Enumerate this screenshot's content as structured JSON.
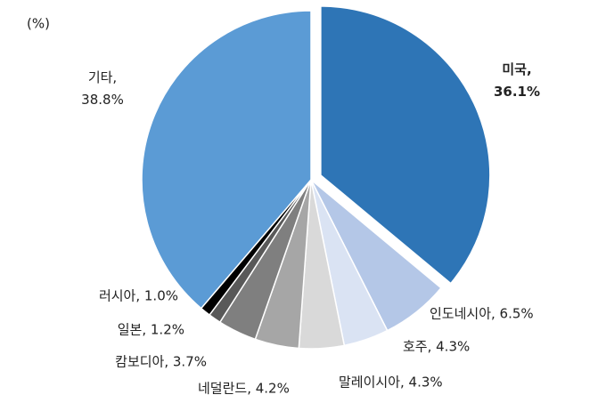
{
  "chart_data": {
    "type": "pie",
    "unit": "(%)",
    "values": [
      36.1,
      6.5,
      4.3,
      4.3,
      4.2,
      3.7,
      1.2,
      1.0,
      38.8
    ],
    "value_labels": [
      "미국,\n36.1%",
      "인도네시아, 6.5%",
      "호주, 4.3%",
      "말레이시아, 4.3%",
      "네덜란드, 4.2%",
      "캄보디아, 3.7%",
      "일본, 1.2%",
      "러시아, 1.0%",
      "기타,\n38.8%"
    ],
    "colors": [
      "#2e75b6",
      "#b4c7e7",
      "#dae3f3",
      "#d9d9d9",
      "#a6a6a6",
      "#7f7f7f",
      "#595959",
      "#000000",
      "#5b9bd5"
    ]
  }
}
